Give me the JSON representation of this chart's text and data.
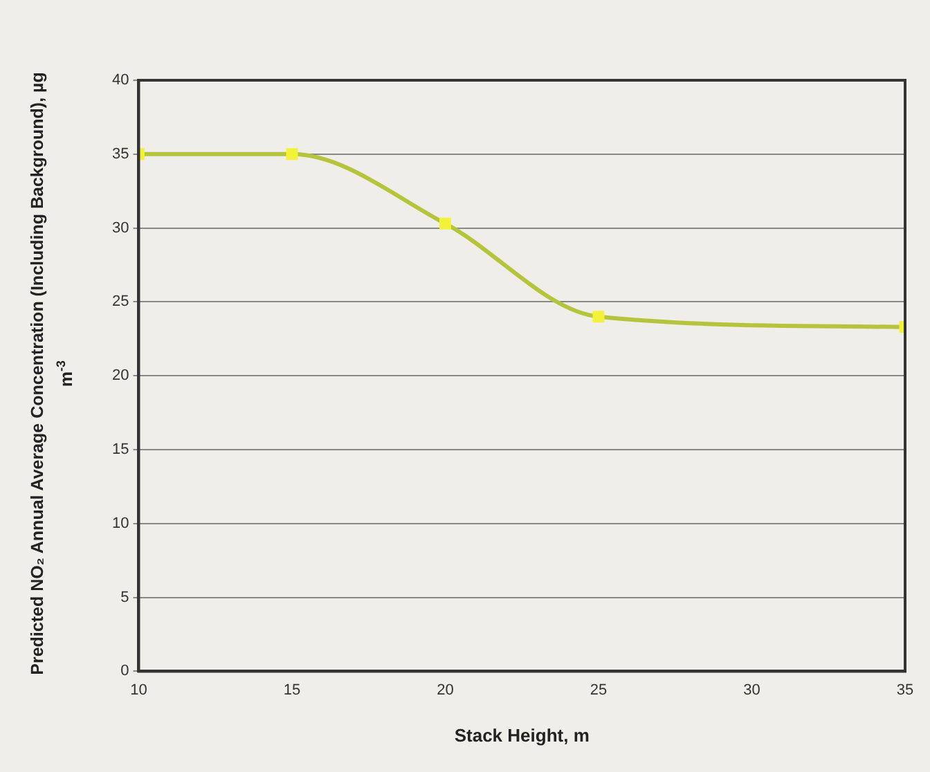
{
  "chart_data": {
    "type": "line",
    "xlabel": "Stack Height, m",
    "ylabel": "Predicted NO₂ Annual Average Concentration (Including Background), µg m$^{-3}$",
    "x": [
      10,
      15,
      20,
      25,
      35
    ],
    "series": [
      {
        "color": "#b5c43c",
        "values": [
          35,
          35,
          30.3,
          24,
          23.3
        ]
      }
    ],
    "xlim": [
      10,
      35
    ],
    "xticks": [
      10,
      15,
      20,
      25,
      30,
      35
    ],
    "ylim": [
      0,
      40
    ],
    "yticks": [
      0,
      5,
      10,
      15,
      20,
      25,
      30,
      35,
      40
    ],
    "grid": "y",
    "marker": "square",
    "line_style": "solid",
    "legend": false
  }
}
